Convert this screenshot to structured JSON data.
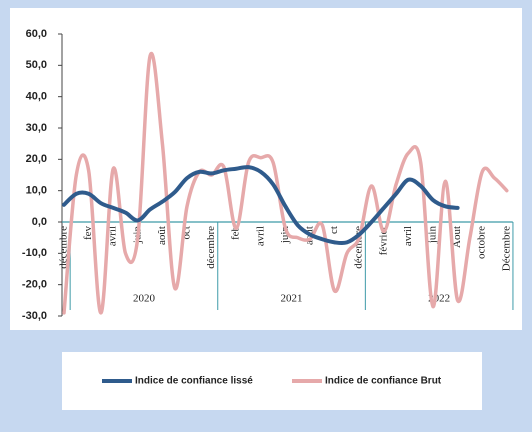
{
  "chart_data": {
    "type": "line",
    "categories": [
      "décembre",
      null,
      "fev",
      null,
      "avril",
      null,
      "juin",
      null,
      "août",
      null,
      "oct",
      null,
      "décembre",
      null,
      "feb",
      null,
      "avril",
      null,
      "juin",
      null,
      "août",
      null,
      "ct",
      null,
      "décembre",
      null,
      "février",
      null,
      "avril",
      null,
      "juin",
      null,
      "Aout",
      null,
      "octobre",
      null,
      "Décembre"
    ],
    "year_labels": [
      "2020",
      "2021",
      "2022"
    ],
    "series": [
      {
        "name": "Indice de confiance lissé",
        "color": "#2f5b8c",
        "values": [
          5.5,
          9,
          9,
          6,
          4.5,
          3,
          0.5,
          4,
          6.5,
          9.5,
          14,
          16,
          15.5,
          16.5,
          17,
          17.5,
          16,
          12,
          5,
          -1,
          -4,
          -5.5,
          -6.5,
          -6.5,
          -4,
          0,
          4.5,
          9,
          13.5,
          11.5,
          7,
          5,
          4.5,
          null,
          null,
          null,
          null
        ]
      },
      {
        "name": "Indice de confiance Brut",
        "color": "#e6a9aa",
        "values": [
          -29,
          15,
          16.5,
          -29,
          17,
          -10,
          -5,
          53,
          25,
          -21,
          5,
          16,
          15,
          17.5,
          -2,
          19,
          20.5,
          19,
          -2,
          -5,
          -5.5,
          -1,
          -22,
          -10,
          -5,
          11.5,
          -3,
          12,
          22,
          19,
          -27,
          13,
          -25,
          -5,
          16,
          14,
          10
        ]
      }
    ],
    "ylim": [
      -30,
      60
    ],
    "yticks": [
      {
        "value": -30,
        "label": "-30,0"
      },
      {
        "value": -20,
        "label": "-20,0"
      },
      {
        "value": -10,
        "label": "-10,0"
      },
      {
        "value": 0,
        "label": "0,0"
      },
      {
        "value": 10,
        "label": "10,0"
      },
      {
        "value": 20,
        "label": "20,0"
      },
      {
        "value": 30,
        "label": "30,0"
      },
      {
        "value": 40,
        "label": "40,0"
      },
      {
        "value": 50,
        "label": "50,0"
      },
      {
        "value": 60,
        "label": "60,0"
      }
    ],
    "legend": "bottom"
  }
}
